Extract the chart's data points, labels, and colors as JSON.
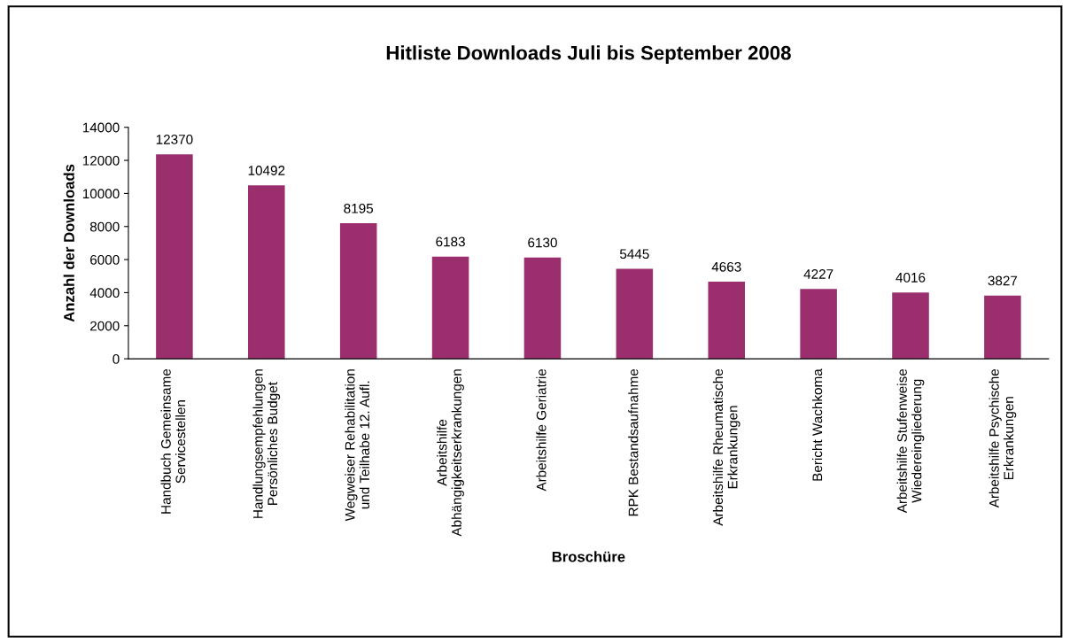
{
  "chart_data": {
    "type": "bar",
    "title": "Hitliste Downloads Juli bis September 2008",
    "xlabel": "Broschüre",
    "ylabel": "Anzahl der Downloads",
    "categories": [
      "Handbuch Gemeinsame\nServicestellen",
      "Handlungsempfehlungen\nPersönliches Budget",
      "Wegweiser Rehabilitation\nund Teilhabe 12. Aufl.",
      "Arbeitshilfe\nAbhängigkeitserkrankungen",
      "Arbeitshilfe Geriatrie",
      "RPK Bestandsaufnahme",
      "Arbeitshilfe Rheumatische\nErkrankungen",
      "Bericht Wachkoma",
      "Arbeitshilfe Stufenweise\nWiedereingliederung",
      "Arbeitshilfe Psychische\nErkrankungen"
    ],
    "values": [
      12370,
      10492,
      8195,
      6183,
      6130,
      5445,
      4663,
      4227,
      4016,
      3827
    ],
    "color": "#9b2f6e",
    "data_labels": true,
    "grid": false,
    "legend": false,
    "ylim": [
      0,
      14000
    ],
    "yticks": [
      0,
      2000,
      4000,
      6000,
      8000,
      10000,
      12000,
      14000
    ]
  }
}
